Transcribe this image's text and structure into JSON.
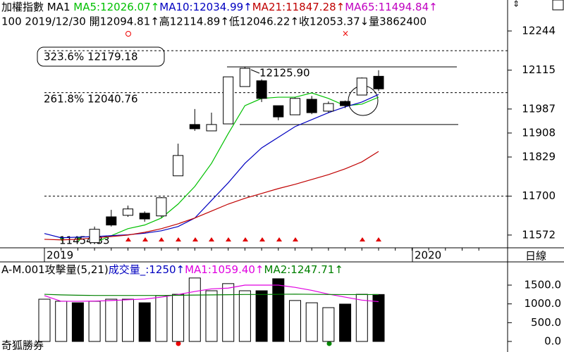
{
  "header": {
    "line1": [
      {
        "text": "加權指數 MA1 ",
        "color": "#000000"
      },
      {
        "text": "MA5:12026.07↑",
        "color": "#00c000"
      },
      {
        "text": "MA10:12034.99↑",
        "color": "#0000c0"
      },
      {
        "text": "MA21:11847.28↑",
        "color": "#c00000"
      },
      {
        "text": "MA65:11494.84↑",
        "color": "#c000c0"
      }
    ],
    "line2": "100 2019/12/30 開12094.81↑高12114.89↑低12046.22↑收12053.37↓量3862400"
  },
  "chart_data": [
    {
      "type": "candlestick",
      "ylim": [
        11530,
        12346
      ],
      "yticks": [
        12244,
        12115,
        11987,
        11908,
        11829,
        11700,
        11572
      ],
      "ohlc": [
        null,
        null,
        null,
        [
          11547,
          11600,
          11547,
          11591
        ],
        [
          11632,
          11655,
          11600,
          11605
        ],
        [
          11637,
          11669,
          11632,
          11658
        ],
        [
          11644,
          11650,
          11616,
          11625
        ],
        [
          11635,
          11697,
          11630,
          11695
        ],
        [
          11767,
          11873,
          11767,
          11834
        ],
        [
          11936,
          11987,
          11915,
          11922
        ],
        [
          11915,
          11975,
          11915,
          11936
        ],
        [
          11938,
          12093,
          11938,
          12093
        ],
        [
          12061,
          12126,
          12061,
          12121
        ],
        [
          12080,
          12085,
          12010,
          12022
        ],
        [
          11998,
          11998,
          11950,
          11961
        ],
        [
          11968,
          12025,
          11968,
          12022
        ],
        [
          12019,
          12030,
          11970,
          11975
        ],
        [
          11980,
          12012,
          11975,
          12005
        ],
        [
          12012,
          12015,
          11990,
          11998
        ],
        [
          12033,
          12091,
          12033,
          12089
        ],
        [
          12094.81,
          12114.89,
          12046.22,
          12053.37
        ]
      ],
      "lines": [
        {
          "color": "#00c000",
          "values": [
            null,
            null,
            null,
            11547,
            11570,
            11593,
            11605,
            11628,
            11674,
            11732,
            11808,
            11906,
            11998,
            12022,
            12026,
            12026,
            12040,
            12022,
            11998,
            12003,
            12026.07
          ]
        },
        {
          "color": "#0000c0",
          "values": [
            11577,
            11563,
            11565,
            11567,
            11570,
            11573,
            11578,
            11586,
            11600,
            11628,
            11686,
            11744,
            11808,
            11859,
            11894,
            11929,
            11952,
            11975,
            11994,
            12010,
            12034.99
          ]
        },
        {
          "color": "#c00000",
          "values": [
            11558,
            11556,
            11558,
            11563,
            11567,
            11572,
            11581,
            11593,
            11609,
            11628,
            11651,
            11674,
            11693,
            11709,
            11725,
            11739,
            11755,
            11771,
            11790,
            11813,
            11847.28
          ]
        }
      ],
      "hlines": [
        {
          "value": 12179.18,
          "dashed": true
        },
        {
          "value": 12040.76,
          "dashed": true
        },
        {
          "value": 11700,
          "dashed": true
        },
        {
          "value": 12125.9,
          "dashed": false
        },
        {
          "value": 11936,
          "dashed": false
        }
      ],
      "annotations": [
        "323.6% 12179.18",
        "261.8% 12040.76",
        "12125.90",
        "11454.33"
      ],
      "x_labels": [
        "2019",
        "2020"
      ],
      "period": "日線"
    },
    {
      "type": "bar",
      "ylim": [
        -281,
        2081
      ],
      "yticks": [
        {
          "value": 1500,
          "label": "1500.0"
        },
        {
          "value": 1000,
          "label": "1000.0"
        },
        {
          "value": 500,
          "label": "500.0"
        },
        {
          "value": 0,
          "label": "0.0"
        }
      ],
      "values": [
        1125,
        1070,
        1030,
        1070,
        1125,
        1125,
        1030,
        1220,
        1255,
        1690,
        1350,
        1540,
        1350,
        1350,
        1670,
        1090,
        1030,
        900,
        995,
        1255,
        1250
      ],
      "colors": [
        "#fff",
        "#fff",
        "#000",
        "#fff",
        "#fff",
        "#fff",
        "#000",
        "#fff",
        "#fff",
        "#fff",
        "#fff",
        "#fff",
        "#fff",
        "#000",
        "#000",
        "#fff",
        "#fff",
        "#fff",
        "#000",
        "#fff",
        "#000"
      ],
      "lines": [
        {
          "color": "#e000e0",
          "values": [
            1220,
            1070,
            1070,
            1075,
            1090,
            1110,
            1130,
            1180,
            1250,
            1330,
            1400,
            1420,
            1500,
            1500,
            1500,
            1440,
            1360,
            1260,
            1180,
            1100,
            1059.4
          ]
        },
        {
          "color": "#008000",
          "values": [
            1255,
            1240,
            1230,
            1225,
            1225,
            1225,
            1225,
            1225,
            1230,
            1235,
            1240,
            1245,
            1250,
            1250,
            1255,
            1260,
            1255,
            1250,
            1248,
            1248,
            1247.71
          ]
        }
      ],
      "header": [
        {
          "text": "A-M.001攻擊量(5,21)",
          "color": "#000000"
        },
        {
          "text": "成交量_:1250↑",
          "color": "#0000c0"
        },
        {
          "text": "MA1:1059.40↑",
          "color": "#e000e0"
        },
        {
          "text": "MA2:1247.71↑",
          "color": "#008000"
        }
      ],
      "footer": "奇狐勝券"
    }
  ]
}
